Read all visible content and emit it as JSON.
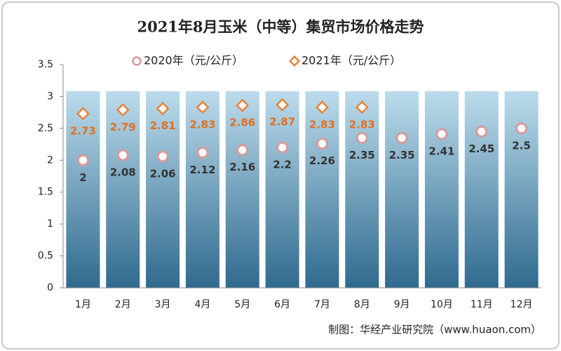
{
  "chart_data": {
    "type": "line",
    "title": "2021年8月玉米（中等）集贸市场价格走势",
    "source": "制图：华经产业研究院（www.huaon.com）",
    "categories": [
      "1月",
      "2月",
      "3月",
      "4月",
      "5月",
      "6月",
      "7月",
      "8月",
      "9月",
      "10月",
      "11月",
      "12月"
    ],
    "series": [
      {
        "name": "2020年（元/公斤）",
        "color": "#d89a9a",
        "label_color": "#333333",
        "marker": "circle",
        "values": [
          2,
          2.08,
          2.06,
          2.12,
          2.16,
          2.2,
          2.26,
          2.35,
          2.35,
          2.41,
          2.45,
          2.5
        ]
      },
      {
        "name": "2021年（元/公斤）",
        "color": "#e8823a",
        "label_color": "#e07020",
        "marker": "diamond",
        "values": [
          2.73,
          2.79,
          2.81,
          2.83,
          2.86,
          2.87,
          2.83,
          2.83,
          null,
          null,
          null,
          null
        ]
      }
    ],
    "ylim": [
      0,
      3.5
    ],
    "yticks": [
      0,
      0.5,
      1,
      1.5,
      2,
      2.5,
      3,
      3.5
    ],
    "legend": "top"
  }
}
